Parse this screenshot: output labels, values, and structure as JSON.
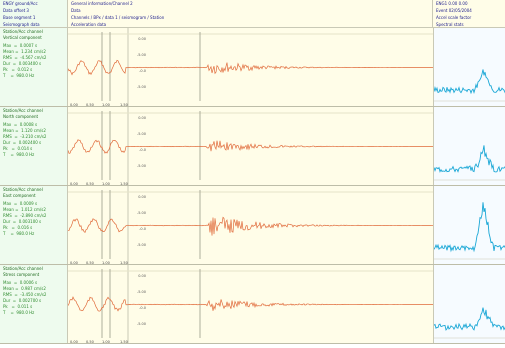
{
  "header": {
    "left": [
      "ENGY  ground/Acc",
      "Data offset  3",
      "Base segment  1",
      "Seismograph data"
    ],
    "center": [
      "General information/Channel 2",
      "Data",
      "Channels / BPx / data 1 / seismogram / Station",
      "Acceleration data"
    ],
    "right": [
      "ENG1  0.00  0.00",
      "Event  02/05/2004",
      "Accel  scale factor",
      "Spectral stats"
    ]
  },
  "channels": [
    {
      "title": "Station/Acc channel",
      "subtitle": "Vertical component",
      "stats": "Max  =  0.0007 s\nMean =  1.234 cm/s2\nRMS  =  -4.567 cm/s2\nDur  =  0.003400 s\nPk   =  0.012 s\nT    =  980.0 Hz",
      "tlabels": [
        "0.00",
        "0.50",
        "1.00",
        "1.50"
      ],
      "ticks": [
        "0.00",
        "-5.00",
        "-0.0",
        "-5.00"
      ]
    },
    {
      "title": "Station/Acc channel",
      "subtitle": "North component",
      "stats": "Max  =  0.0008 s\nMean =  1.120 cm/s2\nRMS  =  -3.210 cm/s2\nDur  =  0.002400 s\nPk   =  0.014 s\nT    =  980.0 Hz",
      "tlabels": [
        "0.00",
        "0.50",
        "1.00",
        "1.50"
      ],
      "ticks": [
        "0.00",
        "-5.00",
        "-0.0",
        "-5.00"
      ]
    },
    {
      "title": "Station/Acc channel",
      "subtitle": "East component",
      "stats": "Max  =  0.0009 s\nMean =  1.012 cm/s2\nRMS  =  -2.890 cm/s2\nDur  =  0.003100 s\nPk   =  0.016 s\nT    =  980.0 Hz",
      "tlabels": [
        "0.00",
        "0.50",
        "1.00",
        "1.50"
      ],
      "ticks": [
        "0.00",
        "-5.00",
        "-0.0",
        "-5.00"
      ]
    },
    {
      "title": "Station/Acc channel",
      "subtitle": "Stress component",
      "stats": "Max  =  0.0006 s\nMean =  0.987 cm/s2\nRMS  =  -3.450 cm/s2\nDur  =  0.002700 s\nPk   =  0.011 s\nT    =  980.0 Hz",
      "tlabels": [
        "0.00",
        "0.50",
        "1.00",
        "1.50"
      ],
      "ticks": [
        "0.00",
        "-5.00",
        "-0.0",
        "-5.00"
      ]
    }
  ],
  "colors": {
    "waveform": "#e06a3a",
    "spectrum": "#1aa7d6",
    "marker": "#9a9a8a"
  }
}
